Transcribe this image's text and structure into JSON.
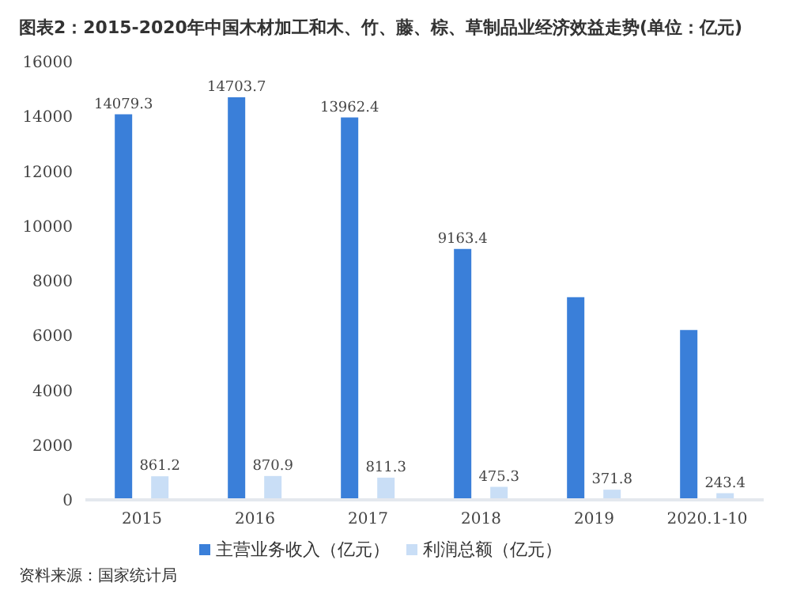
{
  "chart_data": {
    "type": "bar",
    "title": "图表2：2015-2020年中国木材加工和木、竹、藤、棕、草制品业经济效益走势(单位：亿元)",
    "categories": [
      "2015",
      "2016",
      "2017",
      "2018",
      "2019",
      "2020.1-10"
    ],
    "series": [
      {
        "name": "主营业务收入（亿元）",
        "color": "#3a7fd9",
        "values": [
          14079.3,
          14703.7,
          13962.4,
          9163.4,
          7400,
          6200
        ],
        "value_labels": [
          "14079.3",
          "14703.7",
          "13962.4",
          "9163.4",
          null,
          null
        ]
      },
      {
        "name": "利润总额（亿元）",
        "color": "#c9def6",
        "values": [
          861.2,
          870.9,
          811.3,
          475.3,
          371.8,
          243.4
        ],
        "value_labels": [
          "861.2",
          "870.9",
          "811.3",
          "475.3",
          "371.8",
          "243.4"
        ]
      }
    ],
    "ylim": [
      0,
      16000
    ],
    "yticks": [
      0,
      2000,
      4000,
      6000,
      8000,
      10000,
      12000,
      14000,
      16000
    ],
    "grid": false,
    "legend": "bottom",
    "annotations": [
      "资料来源：国家统计局"
    ]
  }
}
